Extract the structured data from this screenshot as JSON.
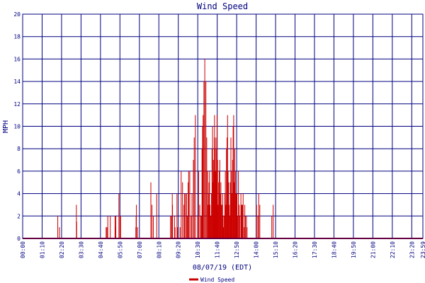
{
  "chart_data": {
    "type": "bar",
    "title": "Wind Speed",
    "xlabel": "08/07/19 (EDT)",
    "ylabel": "MPH",
    "ylim": [
      0,
      20
    ],
    "y_ticks": [
      0,
      2,
      4,
      6,
      8,
      10,
      12,
      14,
      16,
      18,
      20
    ],
    "x_ticks": [
      "00:00",
      "01:10",
      "02:20",
      "03:30",
      "04:40",
      "05:50",
      "07:00",
      "08:10",
      "09:20",
      "10:30",
      "11:40",
      "12:50",
      "14:00",
      "15:10",
      "16:20",
      "17:30",
      "18:40",
      "19:50",
      "21:00",
      "22:10",
      "23:20",
      "23:59"
    ],
    "grid": true,
    "legend_position": "bottom-center",
    "series": [
      {
        "name": "Wind Speed",
        "color": "#cc0000",
        "x_unit": "minutes since 00:00",
        "x": [
          125,
          131,
          192,
          193,
          299,
          302,
          305,
          314,
          331,
          333,
          334,
          345,
          349,
          350,
          351,
          406,
          407,
          408,
          412,
          460,
          464,
          469,
          481,
          531,
          534,
          537,
          538,
          545,
          547,
          554,
          556,
          565,
          569,
          574,
          579,
          581,
          585,
          588,
          591,
          594,
          596,
          600,
          605,
          608,
          613,
          616,
          620,
          628,
          632,
          636,
          640,
          642,
          644,
          646,
          648,
          651,
          654,
          658,
          661,
          664,
          666,
          668,
          669,
          670,
          671,
          673,
          674,
          676,
          678,
          680,
          682,
          684,
          685,
          686,
          688,
          689,
          690,
          691,
          692,
          693,
          694,
          695,
          696,
          697,
          698,
          699,
          700,
          702,
          704,
          706,
          707,
          708,
          710,
          712,
          714,
          716,
          718,
          720,
          722,
          724,
          726,
          728,
          730,
          732,
          734,
          736,
          738,
          740,
          742,
          744,
          746,
          748,
          750,
          752,
          754,
          756,
          758,
          760,
          762,
          764,
          766,
          768,
          770,
          772,
          775,
          778,
          780,
          784,
          786,
          788,
          790,
          792,
          796,
          798,
          800,
          804,
          806,
          840,
          845,
          848,
          852,
          895,
          900
        ],
        "y": [
          2,
          1,
          3,
          1.5,
          1,
          1,
          2,
          2,
          2,
          1,
          2,
          4,
          2,
          2,
          2,
          1,
          2,
          3,
          1,
          5,
          3,
          2,
          4,
          2,
          2,
          4,
          3,
          2,
          1,
          4,
          1,
          1,
          6,
          5,
          3,
          4,
          4,
          4,
          2,
          5,
          6,
          6,
          2,
          4,
          7,
          9,
          11,
          2,
          6,
          3,
          2,
          2,
          8,
          10,
          11,
          14,
          16,
          14,
          9,
          6,
          3,
          4,
          5,
          4,
          6,
          3,
          2,
          2,
          4,
          8,
          10,
          5,
          7,
          6,
          9,
          11,
          8,
          4,
          6,
          4,
          9,
          5,
          6,
          8,
          11,
          4,
          7,
          3,
          5,
          6,
          5,
          7,
          4,
          5,
          3,
          3,
          4,
          2,
          1,
          2,
          4,
          6,
          3,
          8,
          9,
          11,
          6,
          5,
          3,
          2,
          5,
          9,
          6,
          4,
          7,
          10,
          11,
          5,
          8,
          6,
          4,
          4,
          4,
          2,
          6,
          3,
          2,
          4,
          3,
          3,
          3,
          4,
          1,
          3,
          2,
          2,
          1,
          3,
          2,
          4,
          3,
          2,
          3
        ]
      }
    ]
  }
}
